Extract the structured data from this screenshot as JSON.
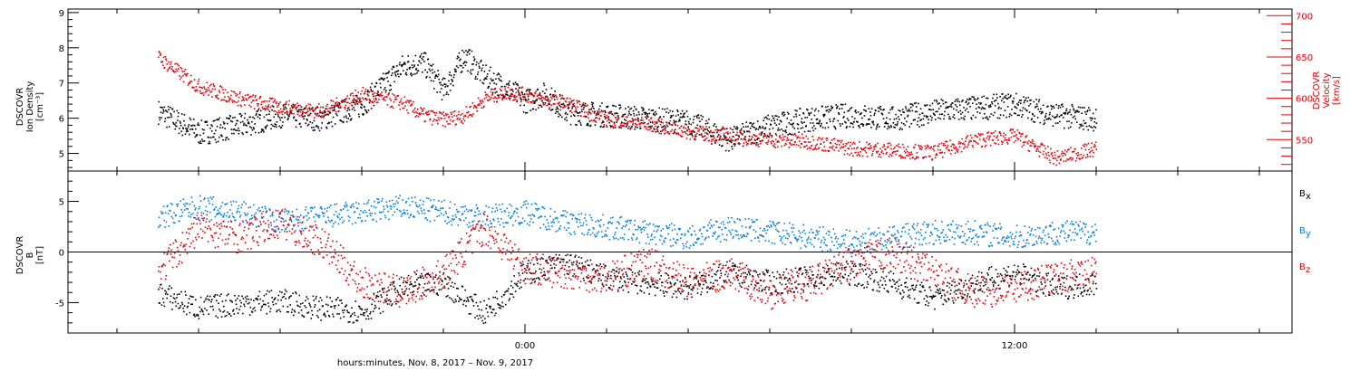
{
  "chart_data": [
    {
      "type": "scatter",
      "panel": "plasma",
      "ylabel_left": [
        "DSCOVR",
        "Ion Density",
        "[cm⁻³]"
      ],
      "ylabel_right": [
        "DSCOVR",
        "Velocity",
        "[km/s]"
      ],
      "ylim_left": [
        4.5,
        9.1
      ],
      "ylim_right": [
        512,
        708
      ],
      "left_ticks": [
        "9",
        "8",
        "7",
        "6",
        "5"
      ],
      "left_tick_values": [
        9,
        8,
        7,
        6,
        5
      ],
      "right_ticks": [
        "700",
        "650",
        "600",
        "550"
      ],
      "right_tick_values": [
        700,
        650,
        600,
        550
      ],
      "colors": {
        "density": "#000000",
        "velocity": "#e8000b"
      },
      "series": [
        {
          "name": "Ion Density",
          "axis": "left",
          "color": "#000000",
          "x": [
            -9.0,
            -8.0,
            -7.0,
            -6.0,
            -5.0,
            -4.0,
            -3.0,
            -2.5,
            -2.0,
            -1.5,
            -1.0,
            -0.5,
            0.0,
            0.5,
            1.0,
            2.0,
            3.0,
            4.0,
            5.0,
            6.0,
            7.0,
            8.0,
            9.0,
            10.0,
            11.0,
            12.0,
            13.0,
            14.0
          ],
          "y": [
            6.2,
            5.6,
            5.8,
            6.1,
            6.0,
            6.4,
            7.5,
            7.6,
            6.8,
            7.8,
            7.2,
            6.9,
            6.5,
            6.7,
            6.2,
            6.1,
            6.0,
            5.9,
            5.4,
            5.8,
            6.0,
            6.1,
            6.0,
            6.2,
            6.3,
            6.4,
            6.1,
            6.0
          ]
        },
        {
          "name": "Velocity",
          "axis": "right",
          "color": "#e8000b",
          "x": [
            -9.0,
            -8.0,
            -7.0,
            -6.0,
            -5.0,
            -4.0,
            -3.0,
            -2.5,
            -2.0,
            -1.5,
            -1.0,
            -0.5,
            0.0,
            0.5,
            1.0,
            2.0,
            3.0,
            4.0,
            5.0,
            6.0,
            7.0,
            8.0,
            9.0,
            10.0,
            11.0,
            12.0,
            13.0,
            14.0
          ],
          "y": [
            650,
            615,
            600,
            590,
            585,
            605,
            595,
            580,
            575,
            580,
            600,
            608,
            605,
            598,
            595,
            575,
            570,
            560,
            555,
            550,
            548,
            540,
            538,
            535,
            550,
            555,
            528,
            540
          ]
        }
      ]
    },
    {
      "type": "scatter",
      "panel": "magnetic-field",
      "ylabel_left": [
        "DSCOVR",
        "B",
        "[nT]"
      ],
      "ylim": [
        -8,
        8
      ],
      "left_ticks": [
        "5",
        "0",
        "-5"
      ],
      "left_tick_values": [
        5,
        0,
        -5
      ],
      "zero_line": true,
      "legend_position": "right",
      "legend": [
        "Bx",
        "By",
        "Bz"
      ],
      "legend_main": [
        "B",
        "B",
        "B"
      ],
      "legend_sub": [
        "x",
        "y",
        "z"
      ],
      "colors": {
        "Bx": "#000000",
        "By": "#0080e0",
        "Bz": "#e8000b"
      },
      "series": [
        {
          "name": "Bx",
          "color": "#000000",
          "x": [
            -9.0,
            -8.0,
            -7.0,
            -6.0,
            -5.0,
            -4.0,
            -3.0,
            -2.0,
            -1.0,
            0.0,
            1.0,
            2.0,
            3.0,
            4.0,
            5.0,
            6.0,
            7.0,
            8.0,
            9.0,
            10.0,
            11.0,
            12.0,
            13.0,
            14.0
          ],
          "y": [
            -4.0,
            -5.5,
            -5.0,
            -4.8,
            -5.5,
            -5.8,
            -3.5,
            -3.0,
            -6.0,
            -2.0,
            -1.0,
            -2.5,
            -3.0,
            -3.5,
            -2.0,
            -3.0,
            -2.5,
            -2.0,
            -3.0,
            -4.5,
            -3.0,
            -2.0,
            -3.5,
            -3.0
          ]
        },
        {
          "name": "By",
          "color": "#0080e0",
          "x": [
            -9.0,
            -8.0,
            -7.0,
            -6.0,
            -5.0,
            -4.0,
            -3.0,
            -2.0,
            -1.0,
            0.0,
            1.0,
            2.0,
            3.0,
            4.0,
            5.0,
            6.0,
            7.0,
            8.0,
            9.0,
            10.0,
            11.0,
            12.0,
            13.0,
            14.0
          ],
          "y": [
            3.5,
            4.5,
            4.0,
            3.0,
            3.5,
            4.0,
            4.5,
            4.0,
            3.5,
            4.0,
            3.0,
            2.5,
            2.0,
            1.5,
            2.5,
            2.0,
            1.5,
            1.0,
            1.5,
            2.0,
            2.0,
            1.5,
            2.0,
            2.0
          ]
        },
        {
          "name": "Bz",
          "color": "#e8000b",
          "x": [
            -9.0,
            -8.0,
            -7.0,
            -6.0,
            -5.0,
            -4.0,
            -3.0,
            -2.0,
            -1.0,
            0.0,
            1.0,
            2.0,
            3.0,
            4.0,
            5.0,
            6.0,
            7.0,
            8.0,
            9.0,
            10.0,
            11.0,
            12.0,
            13.0,
            14.0
          ],
          "y": [
            -2.0,
            2.5,
            1.5,
            3.0,
            1.0,
            -3.0,
            -4.0,
            -2.0,
            2.5,
            -1.5,
            -2.0,
            -2.5,
            -1.0,
            -3.0,
            -2.0,
            -4.0,
            -3.0,
            -1.0,
            0.0,
            -2.0,
            -4.0,
            -3.5,
            -2.5,
            -2.0
          ]
        }
      ]
    }
  ],
  "x_axis": {
    "range": [
      -11.2,
      18.8
    ],
    "major_ticks": [
      0,
      12
    ],
    "major_labels": [
      "0:00",
      "12:00"
    ],
    "minor_step": 2,
    "title": "hours:minutes,  Nov.  8, 2017 – Nov.  9, 2017"
  }
}
